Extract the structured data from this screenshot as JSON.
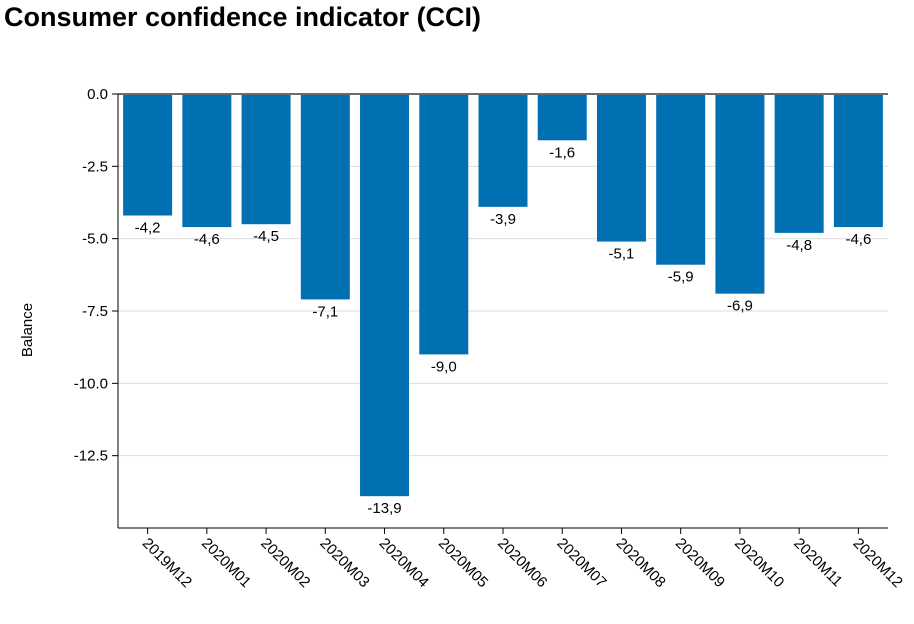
{
  "chart_data": {
    "type": "bar",
    "title": "Consumer confidence indicator (CCI)",
    "xlabel": "",
    "ylabel": "Balance",
    "categories": [
      "2019M12",
      "2020M01",
      "2020M02",
      "2020M03",
      "2020M04",
      "2020M05",
      "2020M06",
      "2020M07",
      "2020M08",
      "2020M09",
      "2020M10",
      "2020M11",
      "2020M12"
    ],
    "values": [
      -4.2,
      -4.6,
      -4.5,
      -7.1,
      -13.9,
      -9.0,
      -3.9,
      -1.6,
      -5.1,
      -5.9,
      -6.9,
      -4.8,
      -4.6
    ],
    "value_labels": [
      "-4,2",
      "-4,6",
      "-4,5",
      "-7,1",
      "-13,9",
      "-9,0",
      "-3,9",
      "-1,6",
      "-5,1",
      "-5,9",
      "-6,9",
      "-4,8",
      "-4,6"
    ],
    "yticks": [
      0,
      -2.5,
      -5,
      -7.5,
      -10,
      -12.5
    ],
    "ytick_labels": [
      "0.0",
      "-2.5",
      "-5.0",
      "-7.5",
      "-10.0",
      "-12.5"
    ],
    "ylim": [
      -15,
      0
    ],
    "grid": true,
    "legend": "none",
    "colors": {
      "bar": "#0070B3",
      "grid": "#dddddd",
      "axis": "#000000",
      "zero_line": "#6b6b6b"
    }
  }
}
